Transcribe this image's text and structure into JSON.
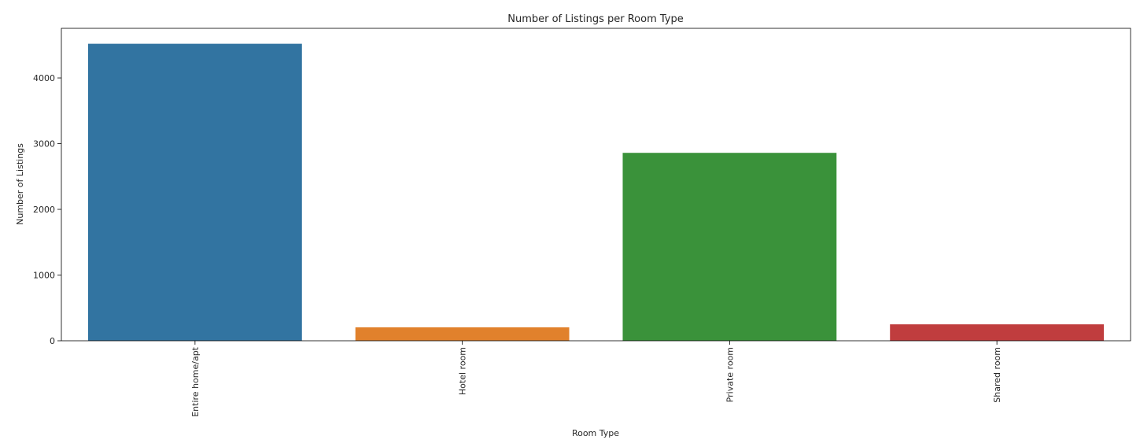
{
  "chart_data": {
    "type": "bar",
    "title": "Number of Listings per Room Type",
    "xlabel": "Room Type",
    "ylabel": "Number of Listings",
    "categories": [
      "Entire home/apt",
      "Hotel room",
      "Private room",
      "Shared room"
    ],
    "values": [
      4520,
      205,
      2860,
      250
    ],
    "colors": [
      "#3274a1",
      "#e1812c",
      "#3a923a",
      "#c03d3e"
    ],
    "ylim": [
      0,
      4755
    ],
    "yticks": [
      0,
      1000,
      2000,
      3000,
      4000
    ],
    "grid": false,
    "legend": "none"
  }
}
